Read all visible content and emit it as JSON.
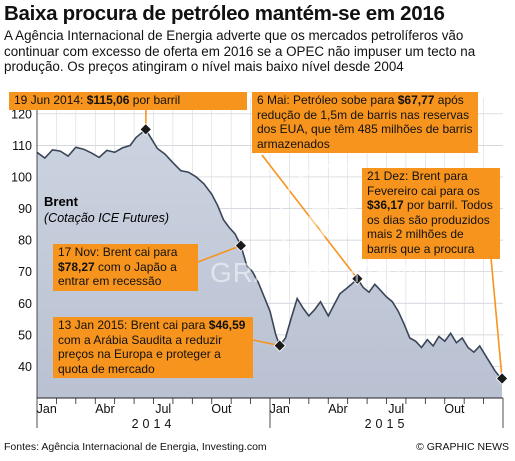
{
  "header": {
    "title": "Baixa procura de petróleo mantém-se em 2016",
    "subtitle": "A Agência Internacional de Energia adverte que os mercados petrolíferos vão continuar com excesso de oferta em 2016 se a OPEC não impuser um tecto na produção. Os preços atingiram o nível mais baixo nível desde 2004"
  },
  "chart_data": {
    "type": "area",
    "series_name": "Brent",
    "series_note": "(Cotação ICE Futures)",
    "ylim": [
      30,
      125
    ],
    "yticks": [
      30,
      40,
      50,
      60,
      70,
      80,
      90,
      100,
      110,
      120
    ],
    "xlim": [
      0,
      24
    ],
    "xticks": [
      {
        "label": "Jan",
        "pos": 0.5
      },
      {
        "label": "Abr",
        "pos": 3.5
      },
      {
        "label": "Jul",
        "pos": 6.5
      },
      {
        "label": "Out",
        "pos": 9.5
      },
      {
        "label": "Jan",
        "pos": 12.5
      },
      {
        "label": "Abr",
        "pos": 15.5
      },
      {
        "label": "Jul",
        "pos": 18.5
      },
      {
        "label": "Out",
        "pos": 21.5
      }
    ],
    "years": [
      {
        "label": "2014",
        "pos": 6
      },
      {
        "label": "2015",
        "pos": 18
      }
    ],
    "grid": true,
    "points": [
      [
        0.0,
        107.8
      ],
      [
        0.4,
        106.0
      ],
      [
        0.8,
        108.6
      ],
      [
        1.2,
        108.2
      ],
      [
        1.6,
        106.6
      ],
      [
        2.0,
        109.4
      ],
      [
        2.4,
        108.8
      ],
      [
        2.8,
        107.6
      ],
      [
        3.2,
        106.2
      ],
      [
        3.6,
        108.4
      ],
      [
        4.0,
        107.8
      ],
      [
        4.4,
        109.2
      ],
      [
        4.8,
        110.0
      ],
      [
        5.1,
        112.5
      ],
      [
        5.4,
        114.0
      ],
      [
        5.6,
        115.06
      ],
      [
        5.9,
        112.0
      ],
      [
        6.2,
        109.0
      ],
      [
        6.6,
        107.2
      ],
      [
        7.0,
        104.5
      ],
      [
        7.4,
        102.0
      ],
      [
        7.8,
        101.5
      ],
      [
        8.2,
        100.0
      ],
      [
        8.6,
        97.8
      ],
      [
        9.0,
        94.5
      ],
      [
        9.3,
        91.0
      ],
      [
        9.6,
        86.5
      ],
      [
        9.9,
        84.0
      ],
      [
        10.2,
        82.0
      ],
      [
        10.5,
        78.27
      ],
      [
        10.8,
        72.0
      ],
      [
        11.1,
        70.0
      ],
      [
        11.4,
        66.5
      ],
      [
        11.7,
        62.0
      ],
      [
        12.0,
        57.5
      ],
      [
        12.3,
        50.0
      ],
      [
        12.5,
        46.59
      ],
      [
        12.8,
        49.0
      ],
      [
        13.1,
        55.5
      ],
      [
        13.4,
        61.5
      ],
      [
        13.7,
        58.5
      ],
      [
        14.0,
        56.0
      ],
      [
        14.3,
        58.0
      ],
      [
        14.6,
        60.5
      ],
      [
        15.0,
        56.0
      ],
      [
        15.3,
        59.5
      ],
      [
        15.6,
        63.0
      ],
      [
        15.9,
        64.5
      ],
      [
        16.2,
        66.0
      ],
      [
        16.5,
        67.77
      ],
      [
        16.8,
        65.0
      ],
      [
        17.1,
        63.5
      ],
      [
        17.4,
        66.0
      ],
      [
        17.7,
        64.0
      ],
      [
        18.0,
        62.0
      ],
      [
        18.3,
        60.5
      ],
      [
        18.6,
        57.5
      ],
      [
        18.9,
        53.5
      ],
      [
        19.2,
        49.0
      ],
      [
        19.5,
        48.0
      ],
      [
        19.8,
        46.0
      ],
      [
        20.1,
        48.5
      ],
      [
        20.4,
        46.5
      ],
      [
        20.7,
        49.5
      ],
      [
        21.0,
        48.0
      ],
      [
        21.3,
        50.5
      ],
      [
        21.6,
        47.5
      ],
      [
        21.9,
        49.0
      ],
      [
        22.2,
        46.0
      ],
      [
        22.5,
        44.5
      ],
      [
        22.8,
        46.5
      ],
      [
        23.1,
        43.5
      ],
      [
        23.4,
        40.5
      ],
      [
        23.6,
        38.5
      ],
      [
        23.8,
        37.0
      ],
      [
        23.95,
        36.17
      ]
    ],
    "annotations": [
      {
        "id": "jun2014",
        "x": 5.6,
        "y": 115.06,
        "prefix": "19 Jun 2014: ",
        "value": "$115,06",
        "suffix": " por barril"
      },
      {
        "id": "may2015",
        "x": 16.5,
        "y": 67.77,
        "prefix": "6 Mai: Petróleo sobe para ",
        "value": "$67,77",
        "suffix": " após redução de 1,5m de barris nas reservas dos EUA, que têm 485 milhões de barris armazenados"
      },
      {
        "id": "dec2015",
        "x": 23.95,
        "y": 36.17,
        "prefix": "21 Dez: Brent para Fevereiro cai para os ",
        "value": "$36,17",
        "suffix": " por barril. Todos os dias são produzidos mais 2 milhões de barris que a procura"
      },
      {
        "id": "nov2014",
        "x": 10.5,
        "y": 78.27,
        "prefix": "17 Nov: Brent cai para ",
        "value": "$78,27",
        "suffix": " com o Japão a entrar em recessão"
      },
      {
        "id": "jan2015",
        "x": 12.5,
        "y": 46.59,
        "prefix": "13 Jan 2015: Brent cai para ",
        "value": "$46,59",
        "suffix": " com a Arábia Saudita a reduzir preços na Europa e proteger a quota de mercado"
      }
    ],
    "colors": {
      "fill": "#b9c1d2",
      "fill_top": "#ccd3e0",
      "line": "#3a4658",
      "accent": "#f7941d",
      "marker": "#1a1a1a"
    }
  },
  "footer": {
    "source": "Fontes: Agência Internacional de Energia, Investing.com",
    "credit": "© GRAPHIC NEWS"
  }
}
